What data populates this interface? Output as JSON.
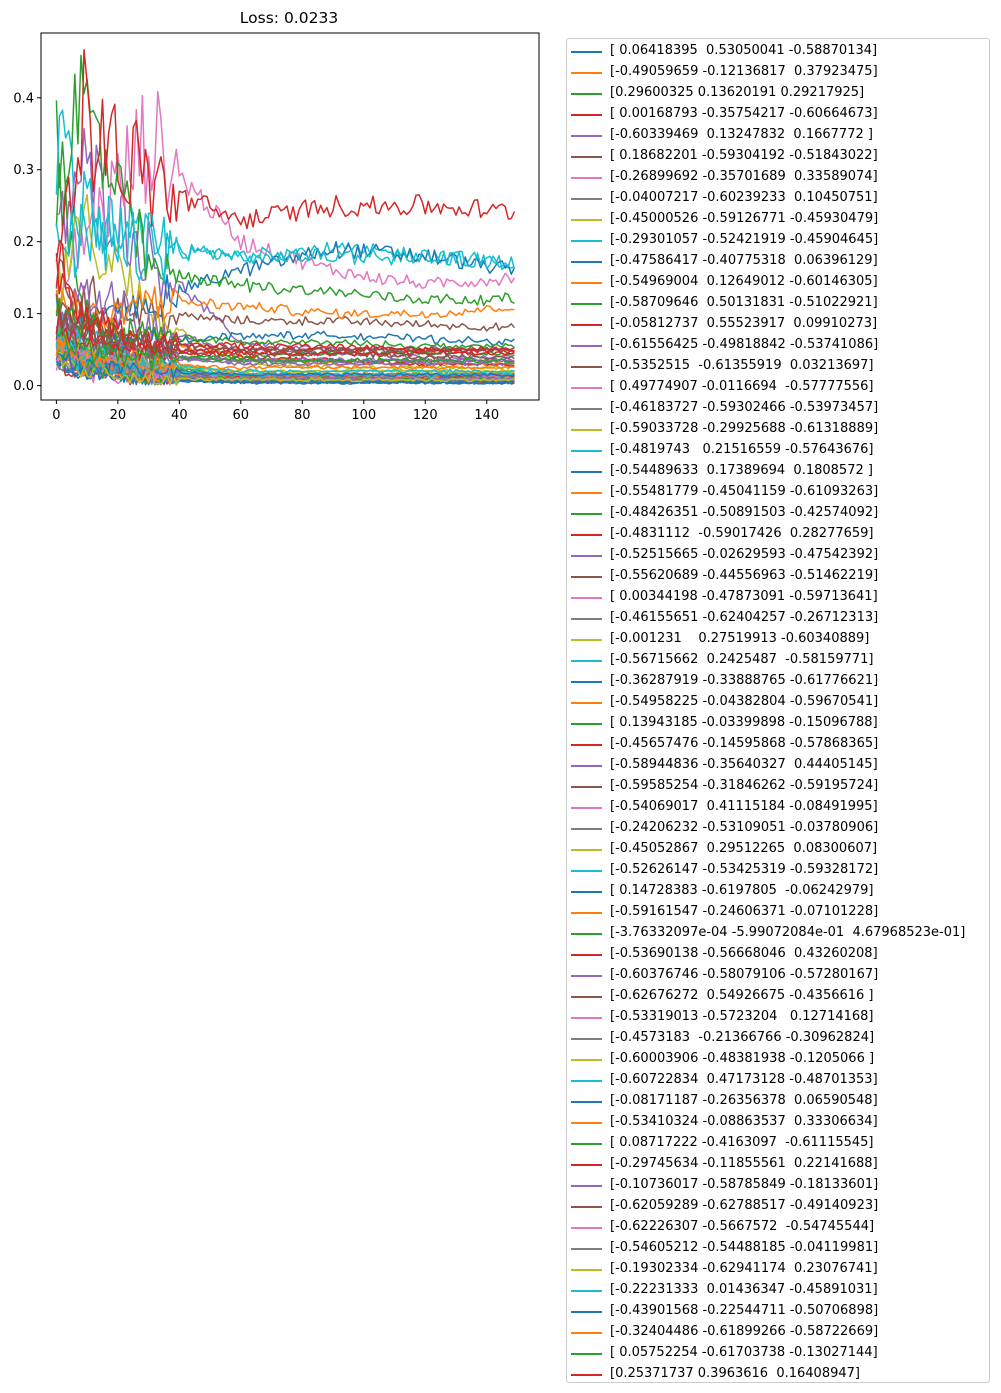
{
  "chart_data": {
    "type": "line",
    "title": "Loss: 0.0233",
    "xlabel": "",
    "ylabel": "",
    "xlim": [
      -5,
      157
    ],
    "ylim": [
      -0.02,
      0.49
    ],
    "x_ticks": [
      "0",
      "20",
      "40",
      "60",
      "80",
      "100",
      "120",
      "140"
    ],
    "y_ticks": [
      "0.0",
      "0.1",
      "0.2",
      "0.3",
      "0.4"
    ],
    "x_tick_values": [
      0,
      20,
      40,
      60,
      80,
      100,
      120,
      140
    ],
    "y_tick_values": [
      0.0,
      0.1,
      0.2,
      0.3,
      0.4
    ],
    "n_points": 150,
    "legend_position": "outside right",
    "grid": false,
    "colors": [
      "#1f77b4",
      "#ff7f0e",
      "#2ca02c",
      "#d62728",
      "#9467bd",
      "#8c564b",
      "#e377c2",
      "#7f7f7f",
      "#bcbd22",
      "#17becf"
    ],
    "series": [
      {
        "name": "[ 0.06418395  0.53050041 -0.58870134]",
        "values": [
          0.05,
          0.01,
          0.03,
          0.005,
          0.004,
          0.004,
          0.004
        ]
      },
      {
        "name": "[-0.49059659 -0.12136817  0.37923475]",
        "values": [
          0.1,
          0.05,
          0.02,
          0.012,
          0.012,
          0.013,
          0.013
        ]
      },
      {
        "name": "[0.29600325 0.13620191 0.29217925]",
        "values": [
          0.33,
          0.1,
          0.03,
          0.01,
          0.01,
          0.008,
          0.008
        ]
      },
      {
        "name": "[ 0.00168793 -0.35754217 -0.60664673]",
        "values": [
          0.02,
          0.02,
          0.01,
          0.005,
          0.005,
          0.005,
          0.005
        ]
      },
      {
        "name": "[-0.60339469  0.13247832  0.1667772 ]",
        "values": [
          0.2,
          0.3,
          0.18,
          0.06,
          0.05,
          0.05,
          0.05
        ]
      },
      {
        "name": "[ 0.18682201 -0.59304192 -0.51843022]",
        "values": [
          0.15,
          0.12,
          0.1,
          0.09,
          0.09,
          0.085,
          0.08
        ]
      },
      {
        "name": "[-0.26899692 -0.35701689  0.33589074]",
        "values": [
          0.1,
          0.2,
          0.34,
          0.2,
          0.16,
          0.14,
          0.15
        ]
      },
      {
        "name": "[-0.04007217 -0.60239233  0.10450751]",
        "values": [
          0.05,
          0.03,
          0.01,
          0.005,
          0.005,
          0.005,
          0.005
        ]
      },
      {
        "name": "[-0.45000526 -0.59126771 -0.45930479]",
        "values": [
          0.12,
          0.22,
          0.1,
          0.03,
          0.025,
          0.025,
          0.025
        ]
      },
      {
        "name": "[-0.29301057 -0.52421919 -0.45904645]",
        "values": [
          0.36,
          0.24,
          0.19,
          0.18,
          0.19,
          0.18,
          0.17
        ]
      },
      {
        "name": "[-0.47586417 -0.40775318  0.06396129]",
        "values": [
          0.06,
          0.08,
          0.12,
          0.16,
          0.19,
          0.18,
          0.16
        ]
      },
      {
        "name": "[-0.54969004  0.12649012 -0.60146305]",
        "values": [
          0.12,
          0.1,
          0.06,
          0.04,
          0.03,
          0.03,
          0.03
        ]
      },
      {
        "name": "[-0.58709646  0.50131831 -0.51022921]",
        "values": [
          0.25,
          0.4,
          0.16,
          0.14,
          0.13,
          0.12,
          0.12
        ]
      },
      {
        "name": "[-0.05812737  0.55523917  0.09910273]",
        "values": [
          0.15,
          0.38,
          0.28,
          0.23,
          0.25,
          0.25,
          0.24
        ]
      },
      {
        "name": "[-0.61556425 -0.49818842 -0.53741086]",
        "values": [
          0.08,
          0.14,
          0.08,
          0.05,
          0.045,
          0.04,
          0.04
        ]
      },
      {
        "name": "[-0.5352515  -0.61355919  0.03213697]",
        "values": [
          0.04,
          0.03,
          0.01,
          0.006,
          0.006,
          0.006,
          0.006
        ]
      },
      {
        "name": "[ 0.49774907 -0.0116694  -0.57777556]",
        "values": [
          0.06,
          0.05,
          0.02,
          0.012,
          0.012,
          0.012,
          0.012
        ]
      },
      {
        "name": "[-0.46183727 -0.59302466 -0.53973457]",
        "values": [
          0.05,
          0.04,
          0.02,
          0.01,
          0.01,
          0.01,
          0.01
        ]
      },
      {
        "name": "[-0.59033728 -0.29925688 -0.61318889]",
        "values": [
          0.07,
          0.06,
          0.03,
          0.02,
          0.02,
          0.02,
          0.02
        ]
      },
      {
        "name": "[-0.4819743   0.21516559 -0.57643676]",
        "values": [
          0.18,
          0.2,
          0.19,
          0.18,
          0.18,
          0.18,
          0.17
        ]
      },
      {
        "name": "[-0.54489633  0.17389694  0.1808572 ]",
        "values": [
          0.04,
          0.02,
          0.008,
          0.004,
          0.004,
          0.004,
          0.004
        ]
      },
      {
        "name": "[-0.55481779 -0.45041159 -0.61093263]",
        "values": [
          0.09,
          0.07,
          0.12,
          0.11,
          0.1,
          0.1,
          0.11
        ]
      },
      {
        "name": "[-0.48426351 -0.50891503 -0.42574092]",
        "values": [
          0.06,
          0.05,
          0.04,
          0.035,
          0.035,
          0.035,
          0.035
        ]
      },
      {
        "name": "[-0.4831112  -0.59017426  0.28277659]",
        "values": [
          0.2,
          0.08,
          0.05,
          0.04,
          0.035,
          0.03,
          0.03
        ]
      },
      {
        "name": "[-0.52515665 -0.02629593 -0.47542392]",
        "values": [
          0.1,
          0.06,
          0.04,
          0.03,
          0.03,
          0.03,
          0.03
        ]
      },
      {
        "name": "[-0.55620689 -0.44556963 -0.51462219]",
        "values": [
          0.05,
          0.03,
          0.02,
          0.015,
          0.015,
          0.015,
          0.015
        ]
      },
      {
        "name": "[ 0.00344198 -0.47873091 -0.59713641]",
        "values": [
          0.03,
          0.02,
          0.01,
          0.008,
          0.008,
          0.008,
          0.008
        ]
      },
      {
        "name": "[-0.46155651 -0.62404257 -0.26712313]",
        "values": [
          0.06,
          0.04,
          0.02,
          0.012,
          0.012,
          0.012,
          0.012
        ]
      },
      {
        "name": "[-0.001231    0.27519913 -0.60340889]",
        "values": [
          0.08,
          0.05,
          0.02,
          0.01,
          0.01,
          0.01,
          0.01
        ]
      },
      {
        "name": "[-0.56715662  0.2425487  -0.58159771]",
        "values": [
          0.1,
          0.08,
          0.03,
          0.015,
          0.015,
          0.015,
          0.015
        ]
      },
      {
        "name": "[-0.36287919 -0.33888765 -0.61776621]",
        "values": [
          0.04,
          0.02,
          0.01,
          0.006,
          0.006,
          0.006,
          0.006
        ]
      },
      {
        "name": "[-0.54958225 -0.04382804 -0.59670541]",
        "values": [
          0.05,
          0.03,
          0.015,
          0.01,
          0.01,
          0.01,
          0.01
        ]
      },
      {
        "name": "[ 0.13943185 -0.03399898 -0.15096788]",
        "values": [
          0.07,
          0.05,
          0.04,
          0.04,
          0.045,
          0.045,
          0.045
        ]
      },
      {
        "name": "[-0.45657476 -0.14595868 -0.57868365]",
        "values": [
          0.12,
          0.07,
          0.05,
          0.05,
          0.05,
          0.05,
          0.05
        ]
      },
      {
        "name": "[-0.58944836 -0.35640327  0.44405145]",
        "values": [
          0.09,
          0.06,
          0.04,
          0.035,
          0.035,
          0.035,
          0.035
        ]
      },
      {
        "name": "[-0.59585254 -0.31846262 -0.59195724]",
        "values": [
          0.11,
          0.08,
          0.06,
          0.05,
          0.05,
          0.05,
          0.05
        ]
      },
      {
        "name": "[-0.54069017  0.41115184 -0.08491995]",
        "values": [
          0.06,
          0.04,
          0.02,
          0.015,
          0.015,
          0.015,
          0.015
        ]
      },
      {
        "name": "[-0.24206232 -0.53109051 -0.03780906]",
        "values": [
          0.03,
          0.02,
          0.01,
          0.007,
          0.007,
          0.007,
          0.007
        ]
      },
      {
        "name": "[-0.45052867  0.29512265  0.08300607]",
        "values": [
          0.05,
          0.03,
          0.015,
          0.01,
          0.01,
          0.01,
          0.01
        ]
      },
      {
        "name": "[-0.52626147 -0.53425319 -0.59328172]",
        "values": [
          0.04,
          0.03,
          0.015,
          0.01,
          0.01,
          0.01,
          0.01
        ]
      },
      {
        "name": "[ 0.14728383 -0.6197805  -0.06242979]",
        "values": [
          0.07,
          0.05,
          0.06,
          0.07,
          0.07,
          0.065,
          0.06
        ]
      },
      {
        "name": "[-0.59161547 -0.24606371 -0.07101228]",
        "values": [
          0.06,
          0.04,
          0.02,
          0.015,
          0.015,
          0.015,
          0.015
        ]
      },
      {
        "name": "[-3.76332097e-04 -5.99072084e-01  4.67968523e-01]",
        "values": [
          0.1,
          0.08,
          0.07,
          0.06,
          0.06,
          0.055,
          0.055
        ]
      },
      {
        "name": "[-0.53690138 -0.56668046  0.43260208]",
        "values": [
          0.05,
          0.04,
          0.02,
          0.012,
          0.012,
          0.012,
          0.012
        ]
      },
      {
        "name": "[-0.60376746 -0.58079106 -0.57280167]",
        "values": [
          0.08,
          0.06,
          0.04,
          0.035,
          0.035,
          0.035,
          0.035
        ]
      },
      {
        "name": "[-0.62676272  0.54926675 -0.4356616 ]",
        "values": [
          0.09,
          0.07,
          0.05,
          0.045,
          0.045,
          0.04,
          0.04
        ]
      },
      {
        "name": "[-0.53319013 -0.5723204   0.12714168]",
        "values": [
          0.04,
          0.03,
          0.015,
          0.01,
          0.01,
          0.01,
          0.01
        ]
      },
      {
        "name": "[-0.4573183  -0.21366766 -0.30962824]",
        "values": [
          0.05,
          0.03,
          0.02,
          0.015,
          0.015,
          0.015,
          0.015
        ]
      },
      {
        "name": "[-0.60003906 -0.48381938 -0.1205066 ]",
        "values": [
          0.06,
          0.05,
          0.03,
          0.02,
          0.02,
          0.02,
          0.02
        ]
      },
      {
        "name": "[-0.60722834  0.47173128 -0.48701353]",
        "values": [
          0.07,
          0.05,
          0.03,
          0.02,
          0.02,
          0.02,
          0.02
        ]
      },
      {
        "name": "[-0.08171187 -0.26356378  0.06590548]",
        "values": [
          0.03,
          0.02,
          0.008,
          0.005,
          0.005,
          0.005,
          0.005
        ]
      },
      {
        "name": "[-0.53410324 -0.08863537  0.33306634]",
        "values": [
          0.05,
          0.03,
          0.015,
          0.01,
          0.01,
          0.01,
          0.01
        ]
      },
      {
        "name": "[ 0.08717222 -0.4163097  -0.61115545]",
        "values": [
          0.04,
          0.03,
          0.015,
          0.01,
          0.01,
          0.01,
          0.01
        ]
      },
      {
        "name": "[-0.29745634 -0.11855561  0.22141688]",
        "values": [
          0.08,
          0.06,
          0.05,
          0.045,
          0.045,
          0.045,
          0.045
        ]
      },
      {
        "name": "[-0.10736017 -0.58785849 -0.18133601]",
        "values": [
          0.04,
          0.03,
          0.015,
          0.01,
          0.01,
          0.01,
          0.01
        ]
      },
      {
        "name": "[-0.62059289 -0.62788517 -0.49140923]",
        "values": [
          0.1,
          0.08,
          0.06,
          0.05,
          0.05,
          0.05,
          0.05
        ]
      },
      {
        "name": "[-0.62226307 -0.5667572  -0.54745544]",
        "values": [
          0.06,
          0.04,
          0.02,
          0.015,
          0.015,
          0.015,
          0.015
        ]
      },
      {
        "name": "[-0.54605212 -0.54488185 -0.04119981]",
        "values": [
          0.05,
          0.03,
          0.02,
          0.015,
          0.015,
          0.015,
          0.015
        ]
      },
      {
        "name": "[-0.19302334 -0.62941174  0.23076741]",
        "values": [
          0.04,
          0.02,
          0.01,
          0.008,
          0.008,
          0.008,
          0.008
        ]
      },
      {
        "name": "[-0.22231333  0.01436347 -0.45891031]",
        "values": [
          0.05,
          0.03,
          0.02,
          0.015,
          0.015,
          0.015,
          0.015
        ]
      },
      {
        "name": "[-0.43901568 -0.22544711 -0.50706898]",
        "values": [
          0.04,
          0.03,
          0.02,
          0.015,
          0.015,
          0.015,
          0.015
        ]
      },
      {
        "name": "[-0.32404486 -0.61899266 -0.58722669]",
        "values": [
          0.06,
          0.04,
          0.03,
          0.025,
          0.025,
          0.025,
          0.025
        ]
      },
      {
        "name": "[ 0.05752254 -0.61703738 -0.13027144]",
        "values": [
          0.07,
          0.05,
          0.04,
          0.035,
          0.035,
          0.035,
          0.035
        ]
      },
      {
        "name": "[0.25371737 0.3963616  0.16408947]",
        "values": [
          0.15,
          0.1,
          0.06,
          0.055,
          0.055,
          0.05,
          0.05
        ]
      }
    ]
  }
}
